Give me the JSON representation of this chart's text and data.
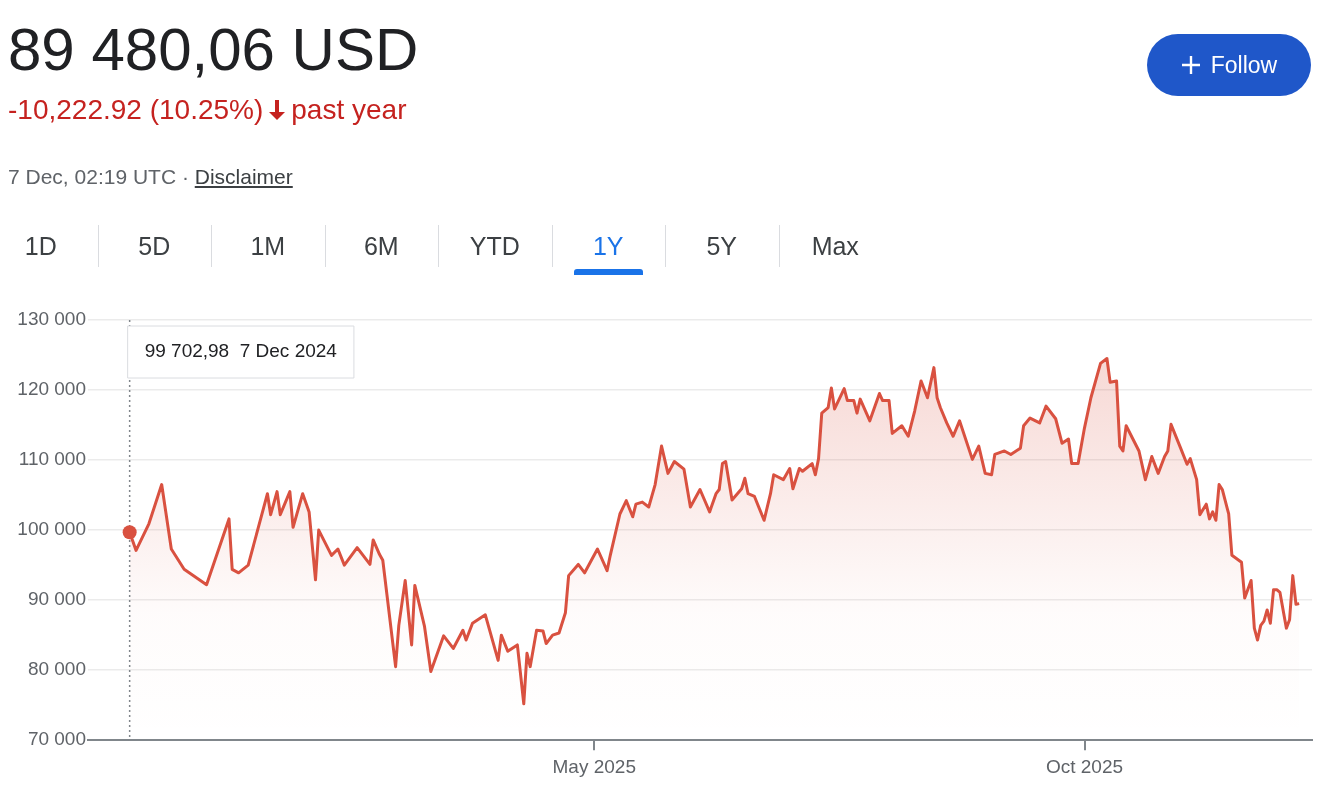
{
  "chart_data": {
    "type": "area",
    "title": "89 480,06 USD",
    "subtitle": "-10,222.92 (10.25%)",
    "annotations": [
      "past year",
      "7 Dec, 02:19 UTC ·",
      "Disclaimer",
      "Follow",
      "1D",
      "5D",
      "1M",
      "6M",
      "YTD",
      "1Y",
      "5Y",
      "Max",
      "99 702,98  7 Dec 2024"
    ],
    "x": [
      "2024-12-07",
      "2024-12-09",
      "2024-12-13",
      "2024-12-17",
      "2024-12-20",
      "2024-12-24",
      "2024-12-31",
      "2025-01-07",
      "2025-01-08",
      "2025-01-10",
      "2025-01-13",
      "2025-01-19",
      "2025-01-20",
      "2025-01-22",
      "2025-01-23",
      "2025-01-26",
      "2025-01-27",
      "2025-01-30",
      "2025-02-01",
      "2025-02-03",
      "2025-02-04",
      "2025-02-08",
      "2025-02-10",
      "2025-02-12",
      "2025-02-16",
      "2025-02-20",
      "2025-02-21",
      "2025-02-23",
      "2025-02-24",
      "2025-02-28",
      "2025-03-01",
      "2025-03-03",
      "2025-03-05",
      "2025-03-06",
      "2025-03-09",
      "2025-03-11",
      "2025-03-15",
      "2025-03-18",
      "2025-03-21",
      "2025-03-22",
      "2025-03-24",
      "2025-03-28",
      "2025-04-01",
      "2025-04-02",
      "2025-04-04",
      "2025-04-07",
      "2025-04-09",
      "2025-04-10",
      "2025-04-11",
      "2025-04-13",
      "2025-04-15",
      "2025-04-16",
      "2025-04-18",
      "2025-04-20",
      "2025-04-22",
      "2025-04-23",
      "2025-04-26",
      "2025-04-28",
      "2025-05-02",
      "2025-05-05",
      "2025-05-06",
      "2025-05-09",
      "2025-05-11",
      "2025-05-13",
      "2025-05-14",
      "2025-05-16",
      "2025-05-18",
      "2025-05-20",
      "2025-05-22",
      "2025-05-24",
      "2025-05-26",
      "2025-05-29",
      "2025-05-31",
      "2025-06-03",
      "2025-06-06",
      "2025-06-08",
      "2025-06-09",
      "2025-06-10",
      "2025-06-11",
      "2025-06-13",
      "2025-06-16",
      "2025-06-17",
      "2025-06-18",
      "2025-06-20",
      "2025-06-23",
      "2025-06-25",
      "2025-06-26",
      "2025-06-29",
      "2025-07-01",
      "2025-07-02",
      "2025-07-04",
      "2025-07-05",
      "2025-07-08",
      "2025-07-09",
      "2025-07-10",
      "2025-07-11",
      "2025-07-13",
      "2025-07-14",
      "2025-07-15",
      "2025-07-18",
      "2025-07-19",
      "2025-07-21",
      "2025-07-22",
      "2025-07-23",
      "2025-07-26",
      "2025-07-29",
      "2025-07-30",
      "2025-08-01",
      "2025-08-02",
      "2025-08-05",
      "2025-08-07",
      "2025-08-09",
      "2025-08-11",
      "2025-08-13",
      "2025-08-15",
      "2025-08-16",
      "2025-08-17",
      "2025-08-19",
      "2025-08-21",
      "2025-08-23",
      "2025-08-27",
      "2025-08-29",
      "2025-08-31",
      "2025-09-02",
      "2025-09-03",
      "2025-09-06",
      "2025-09-08",
      "2025-09-11",
      "2025-09-12",
      "2025-09-14",
      "2025-09-17",
      "2025-09-19",
      "2025-09-22",
      "2025-09-24",
      "2025-09-26",
      "2025-09-27",
      "2025-09-29",
      "2025-10-01",
      "2025-10-03",
      "2025-10-06",
      "2025-10-08",
      "2025-10-09",
      "2025-10-11",
      "2025-10-12",
      "2025-10-13",
      "2025-10-14",
      "2025-10-18",
      "2025-10-20",
      "2025-10-22",
      "2025-10-24",
      "2025-10-26",
      "2025-10-27",
      "2025-10-28",
      "2025-10-31",
      "2025-11-02",
      "2025-11-03",
      "2025-11-05",
      "2025-11-06",
      "2025-11-08",
      "2025-11-09",
      "2025-11-10",
      "2025-11-11",
      "2025-11-12",
      "2025-11-13",
      "2025-11-15",
      "2025-11-16",
      "2025-11-19",
      "2025-11-20",
      "2025-11-22",
      "2025-11-23",
      "2025-11-24",
      "2025-11-25",
      "2025-11-26",
      "2025-11-27",
      "2025-11-28",
      "2025-11-29",
      "2025-11-30",
      "2025-12-01",
      "2025-12-03",
      "2025-12-04",
      "2025-12-05",
      "2025-12-06",
      "2025-12-07"
    ],
    "values": [
      99700,
      97100,
      100900,
      106500,
      97300,
      94400,
      92200,
      101600,
      94400,
      93900,
      95000,
      105200,
      102200,
      105500,
      102200,
      105500,
      100400,
      105200,
      102600,
      92900,
      100000,
      96400,
      97300,
      95000,
      97500,
      95100,
      98600,
      96500,
      95700,
      80500,
      86400,
      92800,
      83600,
      92100,
      86300,
      79800,
      84900,
      83100,
      85700,
      84300,
      86700,
      87900,
      81400,
      85000,
      82700,
      83600,
      75200,
      82400,
      80500,
      85700,
      85600,
      83800,
      85000,
      85300,
      88200,
      93500,
      95100,
      93900,
      97300,
      94200,
      96400,
      102300,
      104200,
      101900,
      103700,
      104000,
      103300,
      106500,
      112000,
      108100,
      109800,
      108700,
      103300,
      105800,
      102600,
      105200,
      105800,
      109500,
      109800,
      104300,
      105900,
      107400,
      105200,
      104800,
      101400,
      105200,
      107900,
      107200,
      108800,
      105900,
      108800,
      108400,
      109500,
      107900,
      110200,
      116700,
      117500,
      120300,
      117300,
      120200,
      118500,
      118500,
      116700,
      118700,
      115600,
      119500,
      118500,
      118500,
      113800,
      114900,
      113400,
      117000,
      121300,
      118900,
      123200,
      118900,
      117500,
      115300,
      113400,
      115600,
      110100,
      112000,
      108100,
      107900,
      110800,
      111300,
      110800,
      111700,
      114900,
      116000,
      115300,
      117700,
      115900,
      112400,
      113000,
      109500,
      109500,
      114600,
      118900,
      123800,
      124500,
      121100,
      121300,
      112000,
      111300,
      114900,
      111300,
      107200,
      110500,
      108100,
      110500,
      111300,
      115100,
      111700,
      109400,
      110200,
      107200,
      102200,
      103700,
      101600,
      102600,
      101400,
      106500,
      105800,
      102300,
      96400,
      95400,
      90300,
      92800,
      86000,
      84300,
      86400,
      87000,
      88600,
      86700,
      91500,
      91500,
      91100,
      86000,
      87200,
      93500,
      89400,
      89500
    ],
    "color": "#d95140",
    "xlim": [
      "2024-11-24",
      "2025-12-11"
    ],
    "xticks": [
      {
        "value": "2025-05-01",
        "label": "May 2025"
      },
      {
        "value": "2025-10-01",
        "label": "Oct 2025"
      }
    ],
    "ylim": [
      70000,
      130000
    ],
    "yticks": [
      {
        "value": 70000,
        "label": "70 000"
      },
      {
        "value": 80000,
        "label": "80 000"
      },
      {
        "value": 90000,
        "label": "90 000"
      },
      {
        "value": 100000,
        "label": "100 000"
      },
      {
        "value": 110000,
        "label": "110 000"
      },
      {
        "value": 120000,
        "label": "120 000"
      },
      {
        "value": 130000,
        "label": "130 000"
      }
    ],
    "grid": "y",
    "legend": false,
    "marker": "none",
    "line_style": "solid",
    "ref_lines": [
      {
        "axis": "x",
        "value": "2024-12-07",
        "color": "#80868b",
        "line_style": "dotted"
      }
    ]
  }
}
